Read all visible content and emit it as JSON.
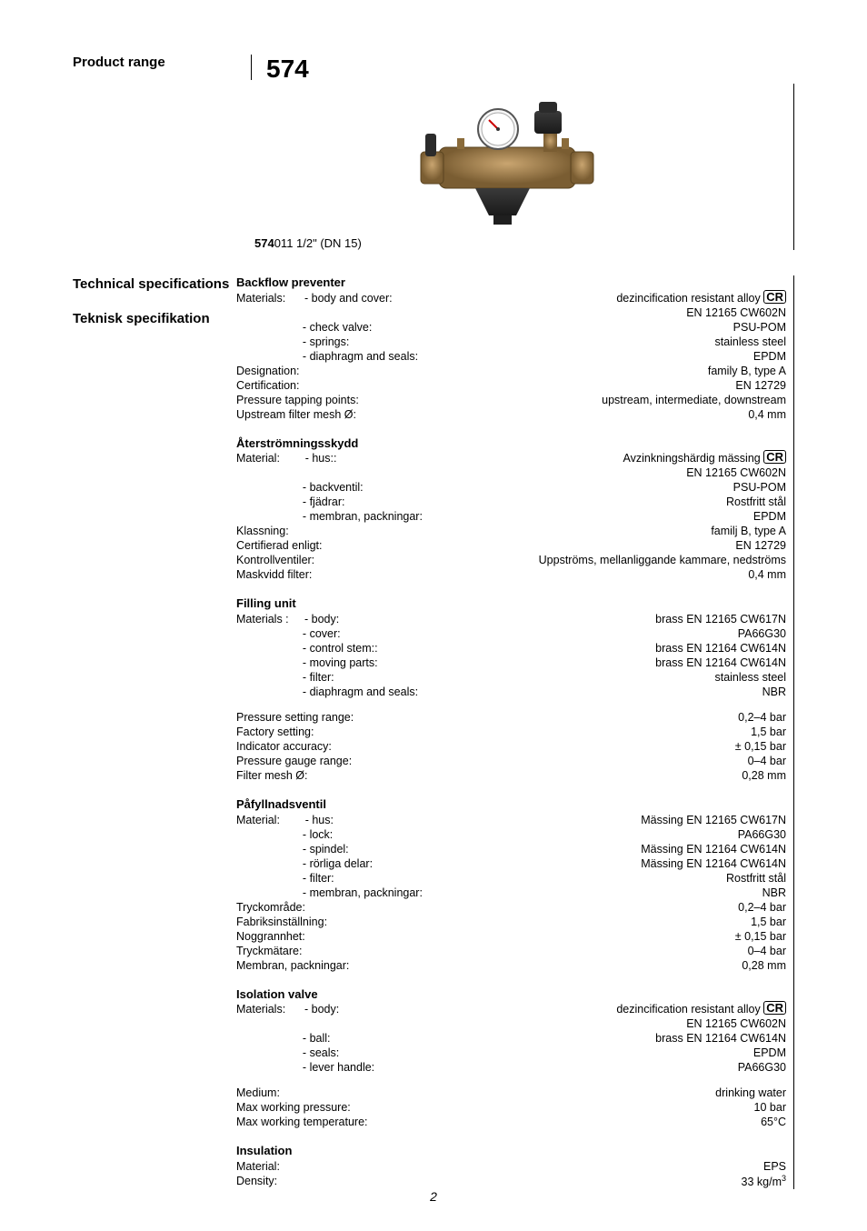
{
  "header": {
    "product_range_label": "Product range",
    "product_number": "574",
    "code_bold": "574",
    "code_rest": "011  1/2\" (DN 15)"
  },
  "left_labels": {
    "tech_spec_en": "Technical specifications",
    "tech_spec_sv": "Teknisk specifikation"
  },
  "backflow": {
    "title": "Backflow preventer",
    "rows": [
      {
        "l": "Materials:      - body and cover:",
        "v": "dezincification resistant alloy ",
        "cr": true
      },
      {
        "l": "",
        "v": "EN 12165 CW602N"
      },
      {
        "l": "                     - check valve:",
        "v": "PSU-POM"
      },
      {
        "l": "                     - springs:",
        "v": "stainless steel"
      },
      {
        "l": "                     - diaphragm and seals:",
        "v": "EPDM"
      },
      {
        "l": "Designation:",
        "v": "family B, type A"
      },
      {
        "l": "Certification:",
        "v": "EN 12729"
      },
      {
        "l": "Pressure tapping points:",
        "v": "upstream, intermediate, downstream"
      },
      {
        "l": "Upstream filter mesh Ø:",
        "v": "0,4 mm"
      }
    ]
  },
  "aterstrom": {
    "title": "Återströmningsskydd",
    "rows": [
      {
        "l": "Material:        - hus::",
        "v": "Avzinkningshärdig mässing ",
        "cr": true
      },
      {
        "l": "",
        "v": "EN 12165 CW602N"
      },
      {
        "l": "                     - backventil:",
        "v": "PSU-POM"
      },
      {
        "l": "                     - fjädrar:",
        "v": "Rostfritt stål"
      },
      {
        "l": "                     - membran, packningar:",
        "v": "EPDM"
      },
      {
        "l": "Klassning:",
        "v": "familj B, type A"
      },
      {
        "l": "Certifierad enligt:",
        "v": "EN 12729"
      },
      {
        "l": "Kontrollventiler:",
        "v": "Uppströms, mellanliggande kammare, nedströms"
      },
      {
        "l": "Maskvidd filter:",
        "v": "0,4 mm"
      }
    ]
  },
  "filling": {
    "title": "Filling unit",
    "rows": [
      {
        "l": "Materials :     - body:",
        "v": "brass EN 12165 CW617N"
      },
      {
        "l": "                     - cover:",
        "v": "PA66G30"
      },
      {
        "l": "                     - control stem::",
        "v": "brass EN 12164 CW614N"
      },
      {
        "l": "                     - moving parts:",
        "v": "brass EN 12164 CW614N"
      },
      {
        "l": "                     - filter:",
        "v": "stainless steel"
      },
      {
        "l": "                     - diaphragm and seals:",
        "v": "NBR"
      }
    ],
    "rows2": [
      {
        "l": "Pressure setting range:",
        "v": "0,2–4 bar"
      },
      {
        "l": "Factory setting:",
        "v": "1,5 bar"
      },
      {
        "l": "Indicator accuracy:",
        "v": "± 0,15 bar"
      },
      {
        "l": "Pressure gauge range:",
        "v": "0–4 bar"
      },
      {
        "l": "Filter mesh Ø:",
        "v": "0,28 mm"
      }
    ]
  },
  "pafyll": {
    "title": "Påfyllnadsventil",
    "rows": [
      {
        "l": "Material:        - hus:",
        "v": "Mässing  EN 12165 CW617N"
      },
      {
        "l": "                     - lock:",
        "v": "PA66G30"
      },
      {
        "l": "                     - spindel:",
        "v": "Mässing  EN 12164 CW614N"
      },
      {
        "l": "                     - rörliga delar:",
        "v": "Mässing  EN 12164 CW614N"
      },
      {
        "l": "                     - filter:",
        "v": "Rostfritt stål"
      },
      {
        "l": "                     - membran, packningar:",
        "v": "NBR"
      },
      {
        "l": "Tryckområde:",
        "v": "0,2–4 bar"
      },
      {
        "l": "Fabriksinställning:",
        "v": "1,5 bar"
      },
      {
        "l": "Noggrannhet:",
        "v": "± 0,15 bar"
      },
      {
        "l": "Tryckmätare:",
        "v": "0–4 bar"
      },
      {
        "l": "Membran, packningar:",
        "v": "0,28 mm"
      }
    ]
  },
  "isolation": {
    "title": "Isolation valve",
    "rows": [
      {
        "l": "Materials:      - body:",
        "v": "dezincification resistant alloy ",
        "cr": true
      },
      {
        "l": "",
        "v": "EN 12165 CW602N"
      },
      {
        "l": "                     - ball:",
        "v": "brass EN 12164 CW614N"
      },
      {
        "l": "                     - seals:",
        "v": "EPDM"
      },
      {
        "l": "                     - lever handle:",
        "v": "PA66G30"
      }
    ],
    "rows2": [
      {
        "l": "Medium:",
        "v": "drinking water"
      },
      {
        "l": "Max working pressure:",
        "v": "10 bar"
      },
      {
        "l": "Max working temperature:",
        "v": "65°C"
      }
    ]
  },
  "insulation": {
    "title": "Insulation",
    "rows": [
      {
        "l": "Material:",
        "v": "EPS"
      },
      {
        "l": "Density:",
        "v": "33 kg/m",
        "sup": "3"
      }
    ]
  },
  "page_number": "2",
  "colors": {
    "text": "#000000",
    "bg": "#ffffff",
    "brass1": "#b8935f",
    "brass2": "#8f6f3e",
    "dark": "#2b2b2b",
    "gray": "#888888"
  }
}
